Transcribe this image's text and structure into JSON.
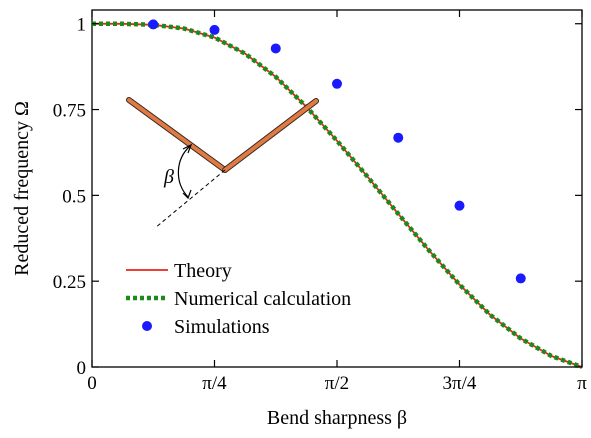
{
  "chart_data": {
    "type": "line",
    "xlabel": "Bend sharpness β",
    "ylabel": "Reduced frequency Ω",
    "xlim": [
      0,
      3.14159265
    ],
    "ylim": [
      0,
      1.04
    ],
    "x_ticks": [
      {
        "value": 0,
        "label": "0"
      },
      {
        "value": 0.785398,
        "label": "π/4"
      },
      {
        "value": 1.570796,
        "label": "π/2"
      },
      {
        "value": 2.356194,
        "label": "3π/4"
      },
      {
        "value": 3.141593,
        "label": "π"
      }
    ],
    "y_ticks": [
      {
        "value": 0,
        "label": "0"
      },
      {
        "value": 0.25,
        "label": "0.25"
      },
      {
        "value": 0.5,
        "label": "0.5"
      },
      {
        "value": 0.75,
        "label": "0.75"
      },
      {
        "value": 1,
        "label": "1"
      }
    ],
    "grid": false,
    "legend_position": "bottom-left",
    "series": [
      {
        "name": "Theory",
        "style": "solid-line",
        "color": "#e8241c",
        "x": [
          0,
          0.1963,
          0.3927,
          0.589,
          0.7854,
          0.9817,
          1.1781,
          1.3744,
          1.5708,
          1.7671,
          1.9635,
          2.1598,
          2.3562,
          2.5525,
          2.7489,
          2.9452,
          3.1416
        ],
        "y": [
          1.0,
          0.9998,
          0.997,
          0.986,
          0.96,
          0.913,
          0.845,
          0.758,
          0.659,
          0.554,
          0.446,
          0.34,
          0.24,
          0.152,
          0.083,
          0.032,
          0.0
        ]
      },
      {
        "name": "Numerical calculation",
        "style": "dotted-line",
        "color": "#1a8a1a",
        "x": [
          0,
          0.1963,
          0.3927,
          0.589,
          0.7854,
          0.9817,
          1.1781,
          1.3744,
          1.5708,
          1.7671,
          1.9635,
          2.1598,
          2.3562,
          2.5525,
          2.7489,
          2.9452,
          3.1416
        ],
        "y": [
          1.0,
          0.9998,
          0.997,
          0.986,
          0.96,
          0.913,
          0.845,
          0.758,
          0.659,
          0.554,
          0.446,
          0.34,
          0.24,
          0.152,
          0.083,
          0.032,
          0.0
        ]
      },
      {
        "name": "Simulations",
        "style": "markers",
        "color": "#1a1aff",
        "x": [
          0.3927,
          0.7854,
          1.1781,
          1.5708,
          1.9635,
          2.3562,
          2.7489
        ],
        "y": [
          0.998,
          0.982,
          0.928,
          0.825,
          0.668,
          0.47,
          0.258
        ]
      }
    ],
    "inset": {
      "description_label": "β",
      "stick_color": "#e07a45"
    }
  }
}
